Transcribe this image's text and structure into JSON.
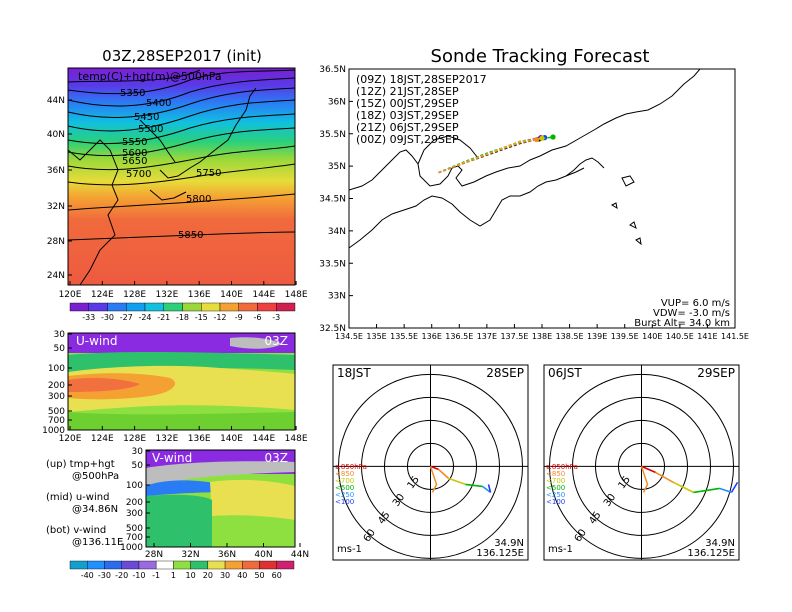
{
  "left": {
    "map_title": "03Z,28SEP2017 (init)",
    "map_label": "temp(C)+hgt(m)@500hPa",
    "contour_labels": [
      "5350",
      "5400",
      "5450",
      "5500",
      "5550",
      "5600",
      "5650",
      "5700",
      "5750",
      "5800",
      "5850"
    ],
    "map_lat_ticks": [
      "44N",
      "40N",
      "36N",
      "32N",
      "28N",
      "24N"
    ],
    "map_lon_ticks": [
      "120E",
      "124E",
      "128E",
      "132E",
      "136E",
      "140E",
      "144E",
      "148E"
    ],
    "temp_colorbar": [
      "-33",
      "-30",
      "-27",
      "-24",
      "-21",
      "-18",
      "-15",
      "-12",
      "-9",
      "-6",
      "-3"
    ],
    "u_panel_label": "U-wind",
    "u_panel_time": "03Z",
    "u_pres_ticks": [
      "30",
      "50",
      "100",
      "200",
      "300",
      "500",
      "700",
      "1000"
    ],
    "u_lon_ticks": [
      "120E",
      "124E",
      "128E",
      "132E",
      "136E",
      "140E",
      "144E",
      "148E"
    ],
    "v_panel_label": "V-wind",
    "v_panel_time": "03Z",
    "v_pres_ticks": [
      "30",
      "50",
      "100",
      "200",
      "300",
      "500",
      "700",
      "1000"
    ],
    "v_lat_ticks": [
      "28N",
      "32N",
      "36N",
      "40N",
      "44N"
    ],
    "legend": {
      "up1": "(up)  tmp+hgt",
      "up2": "@500hPa",
      "mid1": "(mid)  u-wind",
      "mid2": "@34.86N",
      "bot1": "(bot)  v-wind",
      "bot2": "@136.11E"
    },
    "wind_colorbar": [
      "-40",
      "-30",
      "-20",
      "-10",
      "-1",
      "1",
      "10",
      "20",
      "30",
      "40",
      "50",
      "60"
    ]
  },
  "right": {
    "title": "Sonde Tracking Forecast",
    "launch_lines": [
      {
        "text": "(09Z)  18JST,28SEP2017",
        "color": "#000000"
      },
      {
        "text": "(12Z)  21JST,28SEP",
        "color": "#a000c8"
      },
      {
        "text": "(15Z)  00JST,29SEP",
        "color": "#1e3cff"
      },
      {
        "text": "(18Z)  03JST,29SEP",
        "color": "#00b400"
      },
      {
        "text": "(21Z)  06JST,29SEP",
        "color": "#c8c800"
      },
      {
        "text": "(00Z)  09JST,29SEP",
        "color": "#f08c28"
      }
    ],
    "lat_ticks": [
      "36.5N",
      "36N",
      "35.5N",
      "35N",
      "34.5N",
      "34N",
      "33.5N",
      "33N",
      "32.5N"
    ],
    "lon_ticks": [
      "134.5E",
      "135E",
      "135.5E",
      "136E",
      "136.5E",
      "137E",
      "137.5E",
      "138E",
      "138.5E",
      "139E",
      "139.5E",
      "140E",
      "140.5E",
      "141E",
      "141.5E"
    ],
    "params": [
      "VUP=  6.0 m/s",
      "VDW= -3.0 m/s",
      "Burst Alt= 34.0 km"
    ],
    "hodo": [
      {
        "time": "18JST",
        "date": "28SEP",
        "lat": "34.9N",
        "lon": "136.125E",
        "unit": "ms-1",
        "rings": [
          "15",
          "30",
          "45",
          "60"
        ]
      },
      {
        "time": "06JST",
        "date": "29SEP",
        "lat": "34.9N",
        "lon": "136.125E",
        "unit": "ms-1",
        "rings": [
          "15",
          "30",
          "45",
          "60"
        ]
      }
    ],
    "hodo_legend": [
      {
        "text": "≥850hPa",
        "color": "#e00000"
      },
      {
        "text": "<850",
        "color": "#f08c28"
      },
      {
        "text": "<700",
        "color": "#c8c800"
      },
      {
        "text": "<500",
        "color": "#00b400"
      },
      {
        "text": "<250",
        "color": "#1e90ff"
      },
      {
        "text": "<100",
        "color": "#1e3cff"
      }
    ]
  },
  "chart_data": [
    {
      "type": "heatmap",
      "title": "03Z,28SEP2017 (init)",
      "annotation": "temp(C)+hgt(m)@500hPa",
      "x_range": [
        "120E",
        "148E"
      ],
      "y_range": [
        "23N",
        "47N"
      ],
      "contours": [
        5350,
        5400,
        5450,
        5500,
        5550,
        5600,
        5650,
        5700,
        5750,
        5800,
        5850
      ],
      "colorbar": [
        -33,
        -30,
        -27,
        -24,
        -21,
        -18,
        -15,
        -12,
        -9,
        -6,
        -3
      ]
    },
    {
      "type": "heatmap",
      "title": "U-wind",
      "annotation": "03Z",
      "x_range": [
        "120E",
        "148E"
      ],
      "y_ticks": [
        30,
        50,
        100,
        200,
        300,
        500,
        700,
        1000
      ]
    },
    {
      "type": "heatmap",
      "title": "V-wind",
      "annotation": "03Z",
      "x_range": [
        "28N",
        "44N"
      ],
      "y_ticks": [
        30,
        50,
        100,
        200,
        300,
        500,
        700,
        1000
      ],
      "colorbar": [
        -40,
        -30,
        -20,
        -10,
        -1,
        1,
        10,
        20,
        30,
        40,
        50,
        60
      ]
    },
    {
      "type": "line",
      "title": "Sonde Tracking Forecast",
      "xlim": [
        134.5,
        141.5
      ],
      "ylim": [
        32.5,
        36.5
      ],
      "series": [
        {
          "name": "(09Z) 18JST,28SEP2017",
          "x": [
            136.125,
            136.6,
            137.1,
            137.6,
            137.95
          ],
          "y": [
            34.9,
            35.05,
            35.2,
            35.35,
            35.42
          ]
        },
        {
          "name": "(12Z) 21JST,28SEP",
          "x": [
            136.125,
            136.6,
            137.1,
            137.6,
            137.98
          ],
          "y": [
            34.9,
            35.06,
            35.22,
            35.38,
            35.44
          ]
        },
        {
          "name": "(15Z) 00JST,29SEP",
          "x": [
            136.125,
            136.6,
            137.1,
            137.6,
            138.05
          ],
          "y": [
            34.9,
            35.06,
            35.22,
            35.38,
            35.44
          ]
        },
        {
          "name": "(18Z) 03JST,29SEP",
          "x": [
            136.125,
            136.6,
            137.1,
            137.7,
            138.2
          ],
          "y": [
            34.9,
            35.07,
            35.23,
            35.39,
            35.45
          ]
        },
        {
          "name": "(21Z) 06JST,29SEP",
          "x": [
            136.125,
            136.6,
            137.1,
            137.6,
            138.0
          ],
          "y": [
            34.9,
            35.06,
            35.22,
            35.38,
            35.43
          ]
        },
        {
          "name": "(00Z) 09JST,29SEP",
          "x": [
            136.125,
            136.6,
            137.1,
            137.6,
            137.9
          ],
          "y": [
            34.9,
            35.05,
            35.21,
            35.36,
            35.41
          ]
        }
      ],
      "annotations": [
        "VUP=  6.0 m/s",
        "VDW= -3.0 m/s",
        "Burst Alt= 34.0 km"
      ]
    }
  ]
}
